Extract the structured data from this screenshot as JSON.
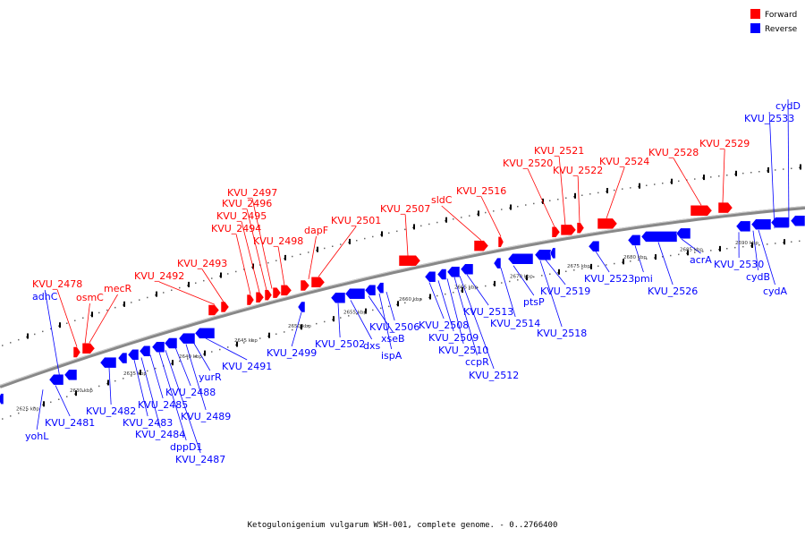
{
  "legend": {
    "forward": {
      "label": "Forward",
      "color": "#ff0000"
    },
    "reverse": {
      "label": "Reverse",
      "color": "#0000ff"
    }
  },
  "caption": "Ketogulonigenium vulgarum WSH-001, complete genome. - 0..2766400",
  "kbp_ticks": [
    "2625 kbp",
    "2630 kbp",
    "2635 kbp",
    "2640 kbp",
    "2645 kbp",
    "2650 kbp",
    "2655 kbp",
    "2660 kbp",
    "2665 kbp",
    "2670 kbp",
    "2675 kbp",
    "2680 kbp",
    "2685 kbp",
    "2690 kbp"
  ],
  "forward_labels": [
    "KVU_2478",
    "osmC",
    "mecR",
    "KVU_2492",
    "KVU_2493",
    "KVU_2494",
    "KVU_2495",
    "KVU_2496",
    "KVU_2497",
    "KVU_2498",
    "dapF",
    "KVU_2501",
    "KVU_2507",
    "sldC",
    "KVU_2516",
    "KVU_2520",
    "KVU_2521",
    "KVU_2522",
    "KVU_2524",
    "KVU_2528",
    "KVU_2529"
  ],
  "reverse_labels": [
    "adhC",
    "yohL",
    "KVU_2481",
    "KVU_2482",
    "KVU_2483",
    "KVU_2484",
    "KVU_2485",
    "dppD1",
    "KVU_2487",
    "KVU_2488",
    "KVU_2489",
    "yurR",
    "KVU_2491",
    "KVU_2499",
    "KVU_2502",
    "dxs",
    "xseB",
    "ispA",
    "KVU_2506",
    "KVU_2508",
    "KVU_2509",
    "KVU_2510",
    "ccpR",
    "KVU_2512",
    "KVU_2513",
    "KVU_2514",
    "ptsP",
    "KVU_2518",
    "KVU_2519",
    "KVU_2523",
    "pmi",
    "KVU_2526",
    "acrA",
    "KVU_2530",
    "cydB",
    "cydA",
    "KVU_2533",
    "cydD"
  ]
}
